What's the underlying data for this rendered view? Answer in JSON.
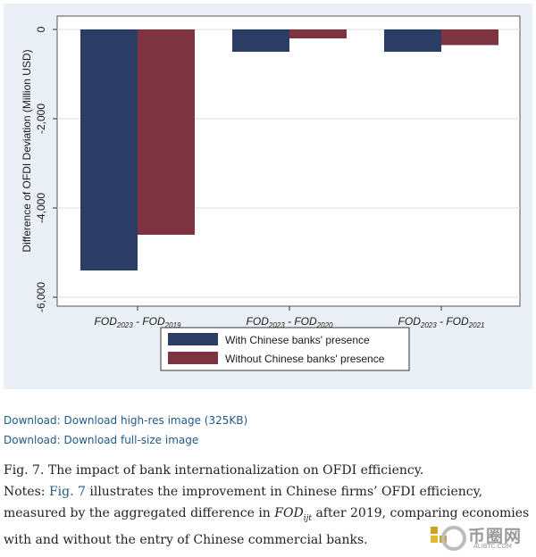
{
  "chart_data": {
    "type": "bar",
    "ylabel": "Difference of OFDI Deviation (Million USD)",
    "ylim": [
      -6200,
      300
    ],
    "yticks": [
      0,
      -2000,
      -4000,
      -6000
    ],
    "ytick_labels": [
      "0",
      "-2,000",
      "-4,000",
      "-6,000"
    ],
    "categories": [
      {
        "main": "FOD",
        "sub": "2023",
        "mid": " - FOD",
        "sub2": "2019"
      },
      {
        "main": "FOD",
        "sub": "2023",
        "mid": " - FOD",
        "sub2": "2020"
      },
      {
        "main": "FOD",
        "sub": "2023",
        "mid": " - FOD",
        "sub2": "2021"
      }
    ],
    "series": [
      {
        "name": "With Chinese banks' presence",
        "color": "#2b3d64",
        "values": [
          -5400,
          -500,
          -500
        ]
      },
      {
        "name": "Without Chinese banks' presence",
        "color": "#7d3440",
        "values": [
          -4600,
          -200,
          -350
        ]
      }
    ],
    "grid": true,
    "legend_position": "bottom-center"
  },
  "links": {
    "download_highres": "Download: Download high-res image (325KB)",
    "download_full": "Download: Download full-size image"
  },
  "caption": {
    "title": "Fig. 7. The impact of bank internationalization on OFDI efficiency.",
    "notes_label": "Notes:",
    "fig_link": "Fig. 7",
    "text1": "illustrates the improvement in Chinese firms’ OFDI efficiency, measured by the aggregated difference in",
    "math_main": "FOD",
    "math_sub": "ijt",
    "text2": "after 2019, comparing economies with and without the entry of Chinese commercial banks."
  },
  "watermark": {
    "text": "币圈网",
    "sub": "ALIBTC.COM"
  }
}
